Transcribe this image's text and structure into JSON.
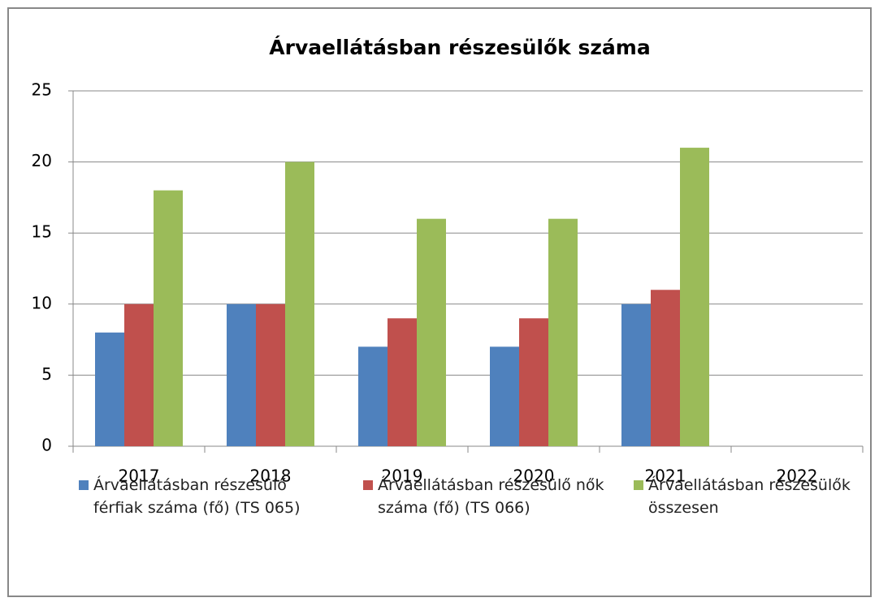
{
  "chart_data": {
    "type": "bar",
    "title": "Árvaellátásban részesülők száma",
    "categories": [
      "2017",
      "2018",
      "2019",
      "2020",
      "2021",
      "2022"
    ],
    "series": [
      {
        "name": "Árvaellátásban részesülő férfiak száma (fő) (TS 065)",
        "color": "#4f81bd",
        "values": [
          8,
          10,
          7,
          7,
          10,
          null
        ]
      },
      {
        "name": "Árvaellátásban részesülő nők száma (fő) (TS 066)",
        "color": "#c0504d",
        "values": [
          10,
          10,
          9,
          9,
          11,
          null
        ]
      },
      {
        "name": "Árvaellátásban részesülők összesen",
        "color": "#9bbb59",
        "values": [
          18,
          20,
          16,
          16,
          21,
          null
        ]
      }
    ],
    "ylim": [
      0,
      25
    ],
    "yticks": [
      0,
      5,
      10,
      15,
      20,
      25
    ],
    "grid": true,
    "legend": "bottom"
  }
}
